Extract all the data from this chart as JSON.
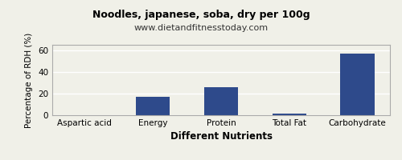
{
  "title": "Noodles, japanese, soba, dry per 100g",
  "subtitle": "www.dietandfitnesstoday.com",
  "categories": [
    "Aspartic acid",
    "Energy",
    "Protein",
    "Total Fat",
    "Carbohydrate"
  ],
  "values": [
    0.3,
    17,
    26,
    1.2,
    57
  ],
  "bar_color": "#2e4a8b",
  "xlabel": "Different Nutrients",
  "ylabel": "Percentage of RDH (%)",
  "ylim": [
    0,
    65
  ],
  "yticks": [
    0,
    20,
    40,
    60
  ],
  "background_color": "#f0f0e8",
  "title_fontsize": 9,
  "subtitle_fontsize": 8,
  "xlabel_fontsize": 8.5,
  "ylabel_fontsize": 7.5,
  "tick_fontsize": 7.5
}
